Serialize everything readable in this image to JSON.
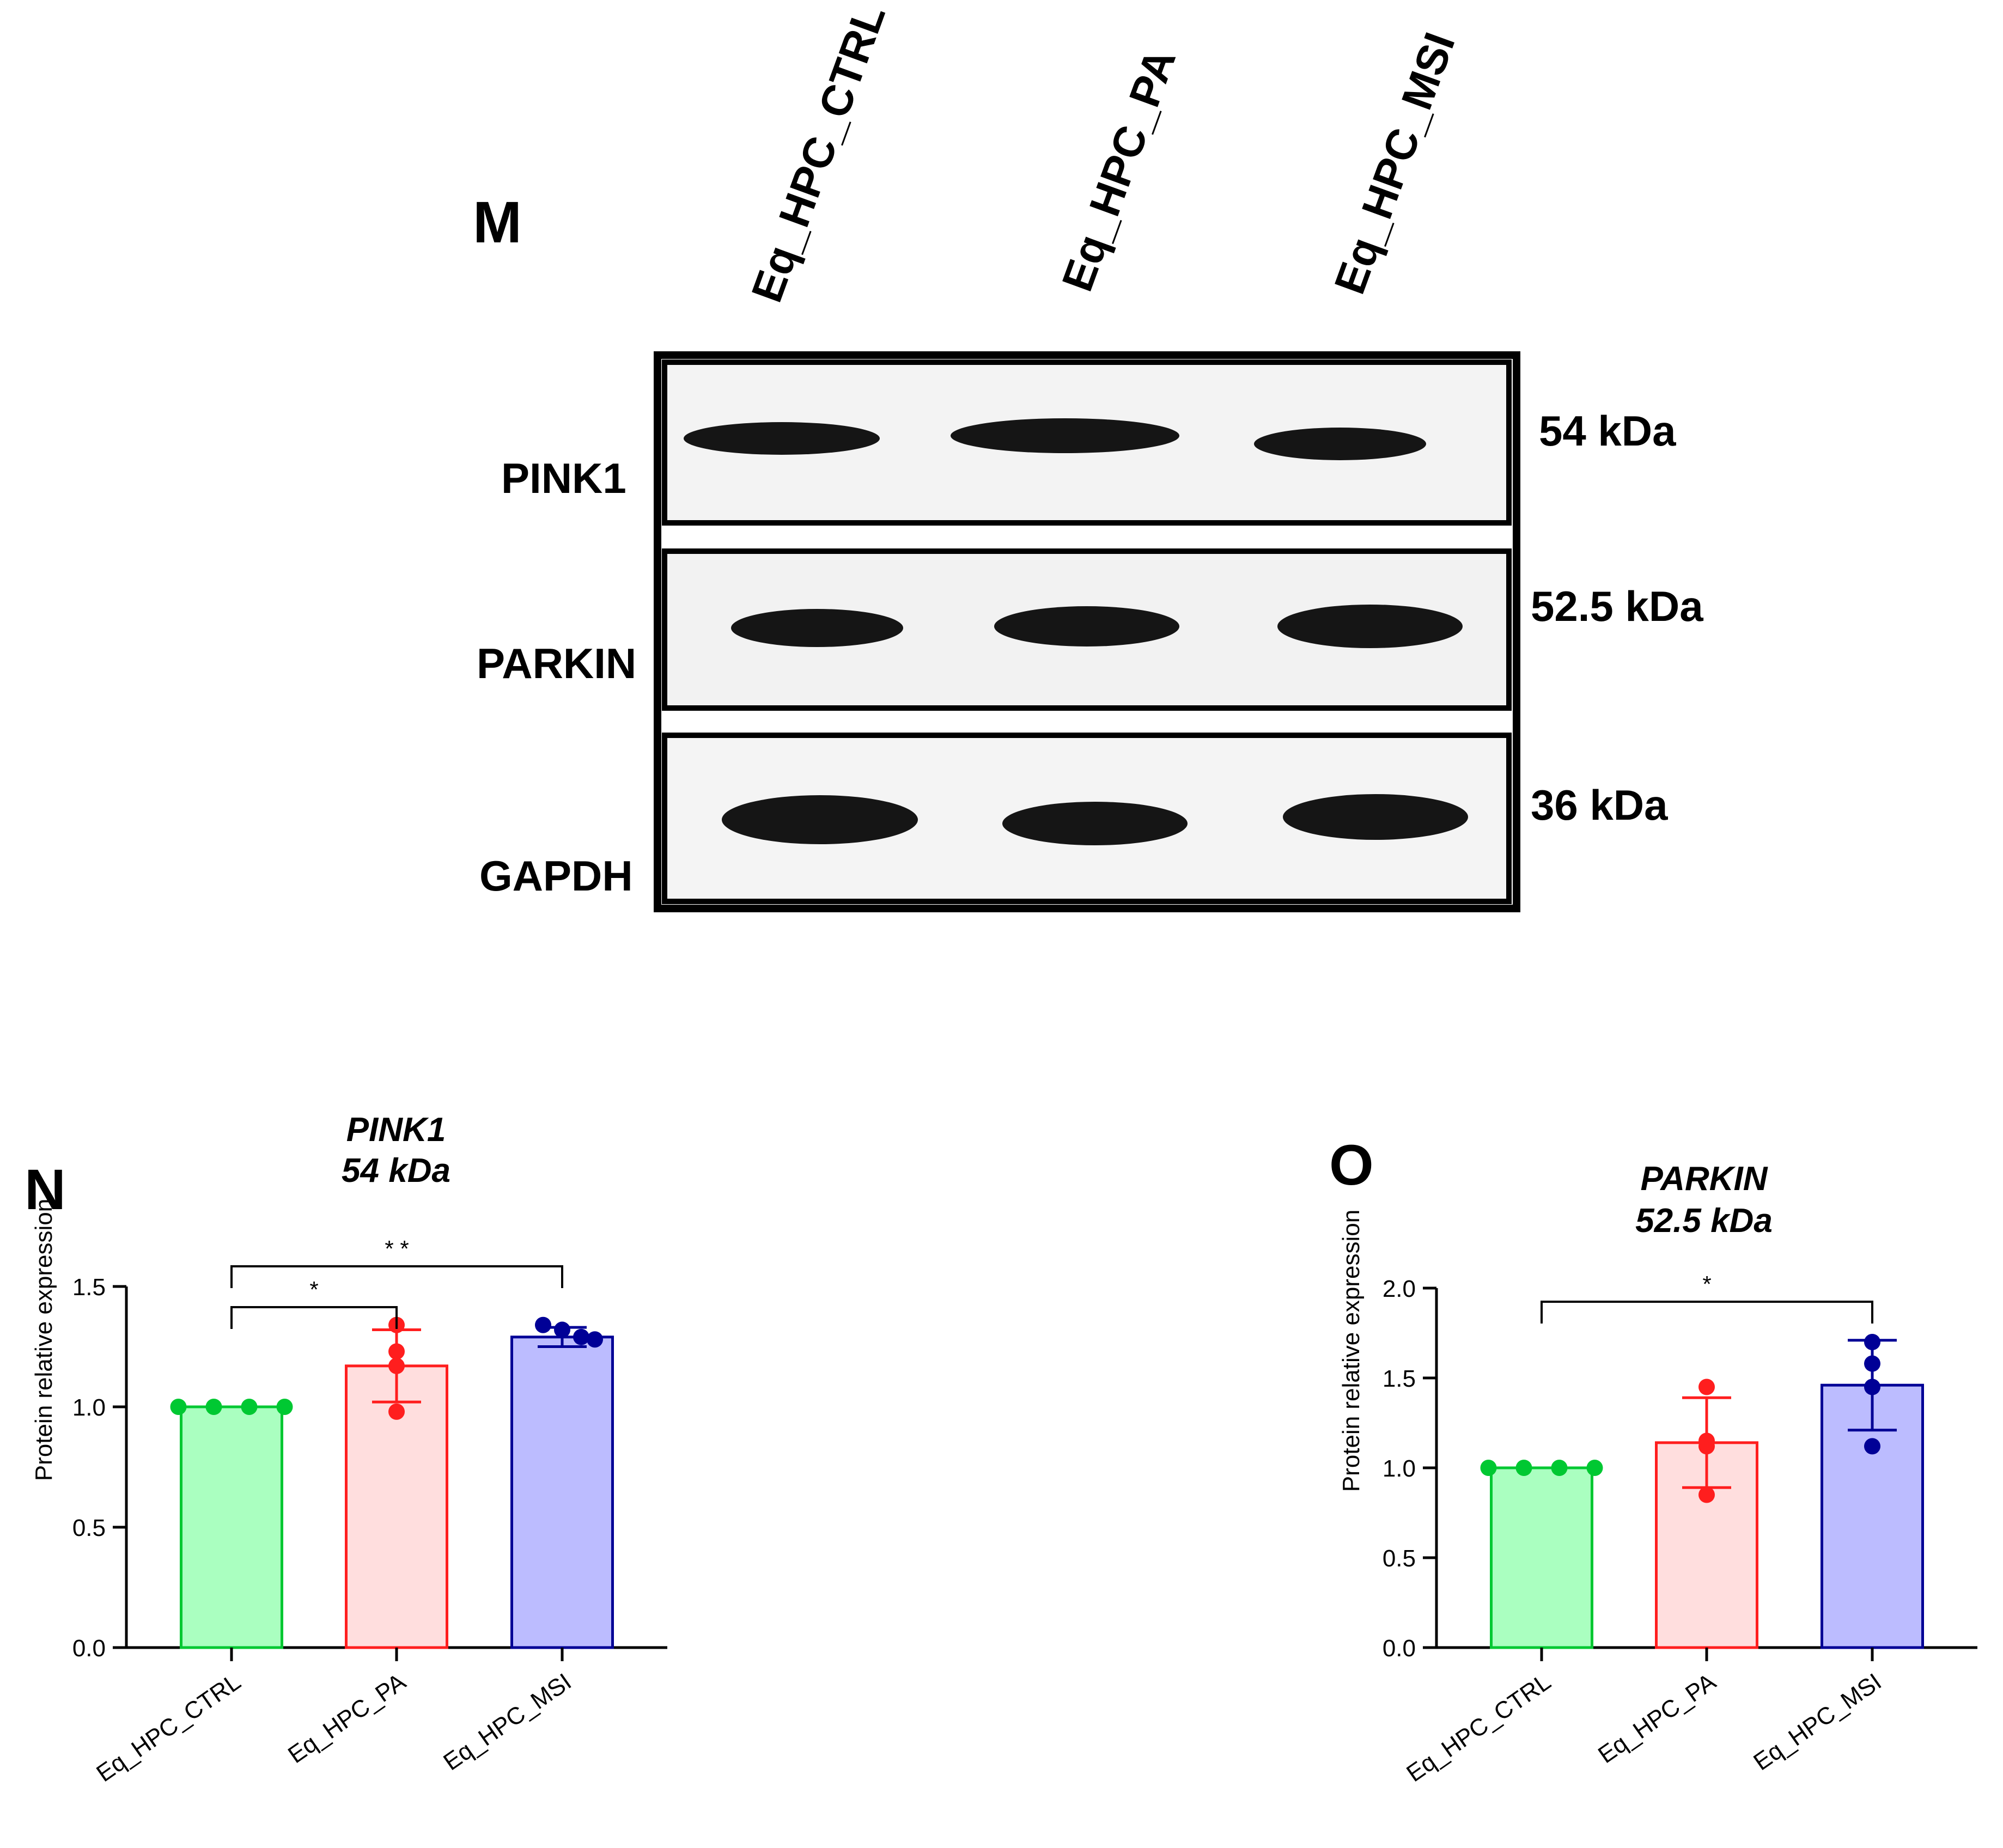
{
  "panel_labels": {
    "blot": "M",
    "chart_pink1": "N",
    "chart_parkin": "O"
  },
  "lanes": [
    "Eq_HPC_CTRL",
    "Eq_HPC_PA",
    "Eq_HPC_MSI"
  ],
  "blot": {
    "rows": [
      {
        "protein": "PINK1",
        "size": "54 kDa"
      },
      {
        "protein": "PARKIN",
        "size": "52.5 kDa"
      },
      {
        "protein": "GAPDH",
        "size": "36 kDa"
      }
    ]
  },
  "colors": {
    "ctrl_fill": "#aaffc0",
    "ctrl_stroke": "#00c832",
    "pa_fill": "#ffdede",
    "pa_stroke": "#ff1e1e",
    "msi_fill": "#bcbcff",
    "msi_stroke": "#000096",
    "band": "#151515",
    "membrane": "#f3f3f3"
  },
  "chart_data": [
    {
      "type": "bar",
      "title": "PINK1",
      "subtitle": "54 kDa",
      "ylabel": "Protein relative expression",
      "xlabel": "",
      "categories": [
        "Eq_HPC_CTRL",
        "Eq_HPC_PA",
        "Eq_HPC_MSI"
      ],
      "values": [
        1.0,
        1.17,
        1.29
      ],
      "sd": [
        0.0,
        0.15,
        0.04
      ],
      "points": [
        [
          1.0,
          1.0,
          1.0,
          1.0
        ],
        [
          1.34,
          1.23,
          1.17,
          0.98
        ],
        [
          1.34,
          1.32,
          1.29,
          1.28
        ]
      ],
      "ylim": [
        0.0,
        1.5
      ],
      "yticks": [
        "0.0",
        "0.5",
        "1.0",
        "1.5"
      ],
      "significance": [
        {
          "from": 0,
          "to": 1,
          "label": "*"
        },
        {
          "from": 0,
          "to": 2,
          "label": "* *"
        }
      ]
    },
    {
      "type": "bar",
      "title": "PARKIN",
      "subtitle": "52.5 kDa",
      "ylabel": "Protein relative expression",
      "xlabel": "",
      "categories": [
        "Eq_HPC_CTRL",
        "Eq_HPC_PA",
        "Eq_HPC_MSI"
      ],
      "values": [
        1.0,
        1.14,
        1.46
      ],
      "sd": [
        0.0,
        0.25,
        0.25
      ],
      "points": [
        [
          1.0,
          1.0,
          1.0,
          1.0
        ],
        [
          1.45,
          1.15,
          1.12,
          0.85
        ],
        [
          1.7,
          1.58,
          1.45,
          1.12
        ]
      ],
      "ylim": [
        0.0,
        2.0
      ],
      "yticks": [
        "0.0",
        "0.5",
        "1.0",
        "1.5",
        "2.0"
      ],
      "significance": [
        {
          "from": 0,
          "to": 2,
          "label": "*"
        }
      ]
    }
  ]
}
